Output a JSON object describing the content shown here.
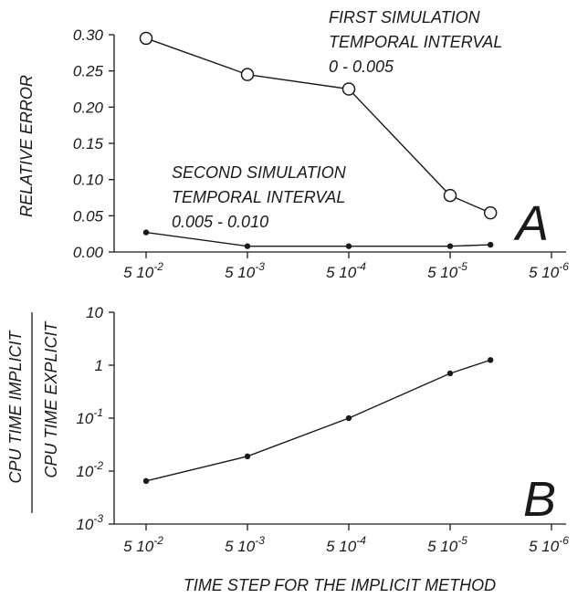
{
  "chart_data": [
    {
      "panel": "A",
      "type": "line",
      "ylabel": "RELATIVE ERROR",
      "ylim": [
        0,
        0.3
      ],
      "yticks": [
        "0.00",
        "0.05",
        "0.10",
        "0.15",
        "0.20",
        "0.25",
        "0.30"
      ],
      "xscale": "log",
      "xticks": [
        {
          "base": "5 10",
          "exp": "-2"
        },
        {
          "base": "5 10",
          "exp": "-3"
        },
        {
          "base": "5 10",
          "exp": "-4"
        },
        {
          "base": "5 10",
          "exp": "-5"
        },
        {
          "base": "5 10",
          "exp": "-6"
        }
      ],
      "x_tick_values": [
        0.05,
        0.005,
        0.0005,
        5e-05,
        5e-06
      ],
      "series": [
        {
          "annotation": [
            "FIRST SIMULATION",
            "TEMPORAL INTERVAL",
            "0 - 0.005"
          ],
          "marker": "open-circle",
          "x": [
            0.05,
            0.005,
            0.0005,
            5e-05,
            2e-05
          ],
          "y": [
            0.295,
            0.245,
            0.225,
            0.078,
            0.054
          ]
        },
        {
          "annotation": [
            "SECOND SIMULATION",
            "TEMPORAL INTERVAL",
            "0.005 - 0.010"
          ],
          "marker": "filled-dot",
          "x": [
            0.05,
            0.005,
            0.0005,
            5e-05,
            2e-05
          ],
          "y": [
            0.027,
            0.008,
            0.008,
            0.008,
            0.01
          ]
        }
      ],
      "panel_label": "A"
    },
    {
      "panel": "B",
      "type": "line",
      "ylabel_numerator": "CPU TIME IMPLICIT",
      "ylabel_denominator": "CPU TIME EXPLICIT",
      "yscale": "log",
      "ylim": [
        0.001,
        10
      ],
      "yticks": [
        {
          "base": "10",
          "exp": ""
        },
        {
          "base": "1",
          "exp": ""
        },
        {
          "base": "10",
          "exp": "-1"
        },
        {
          "base": "10",
          "exp": "-2"
        },
        {
          "base": "10",
          "exp": "-3"
        }
      ],
      "xscale": "log",
      "xticks": [
        {
          "base": "5 10",
          "exp": "-2"
        },
        {
          "base": "5 10",
          "exp": "-3"
        },
        {
          "base": "5 10",
          "exp": "-4"
        },
        {
          "base": "5 10",
          "exp": "-5"
        },
        {
          "base": "5 10",
          "exp": "-6"
        }
      ],
      "x_tick_values": [
        0.05,
        0.005,
        0.0005,
        5e-05,
        5e-06
      ],
      "xlabel": "TIME STEP FOR THE IMPLICIT METHOD",
      "series": [
        {
          "marker": "filled-dot",
          "x": [
            0.05,
            0.005,
            0.0005,
            5e-05,
            2e-05
          ],
          "y": [
            0.0065,
            0.019,
            0.1,
            0.7,
            1.25
          ]
        }
      ],
      "panel_label": "B"
    }
  ]
}
